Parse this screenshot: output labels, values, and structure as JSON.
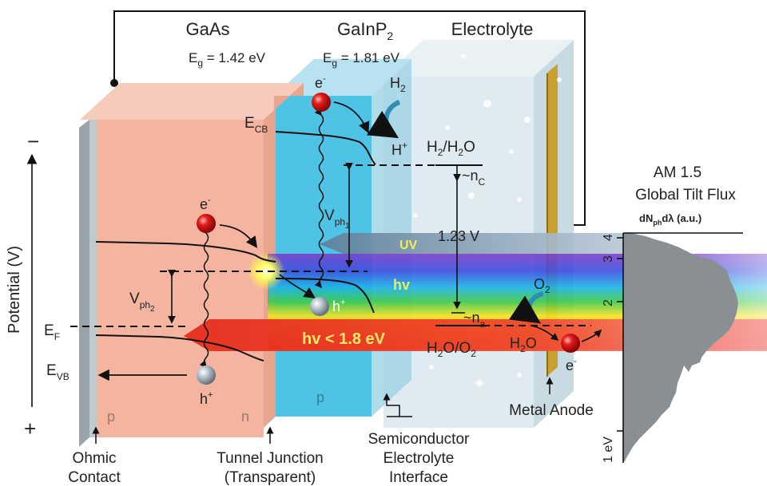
{
  "labels": {
    "gaas": "GaAs",
    "gaas_eg_sym": "E",
    "gaas_eg_sub": "g",
    "gaas_eg_val": " = 1.42 eV",
    "gainp_main": "GaInP",
    "gainp_sub": "2",
    "gainp_eg_sym": "E",
    "gainp_eg_sub": "g",
    "gainp_eg_val": " = 1.81 eV",
    "electrolyte": "Electrolyte",
    "ecb": "E",
    "ecb_sub": "CB",
    "ef": "E",
    "ef_sub": "F",
    "evb": "E",
    "evb_sub": "VB",
    "vph1": "V",
    "vph1_sub": "ph",
    "vph1_sub2": "1",
    "vph2": "V",
    "vph2_sub": "ph",
    "vph2_sub2": "2",
    "h2": "H",
    "h2_sub": "2",
    "hplus": "H",
    "hplus_sup": "+",
    "h2_h2o": "H",
    "h2_h2o_sub": "2",
    "h2_h2o_rest": "/H",
    "h2_h2o_sub2": "2",
    "h2_h2o_end": "O",
    "nc": "~n",
    "nc_sub": "C",
    "v123": "1.23 V",
    "na": "~n",
    "na_sub": "a",
    "h2o_o2": "H",
    "h2o_o2_sub": "2",
    "h2o_o2_mid": "O/O",
    "h2o_o2_sub2": "2",
    "h2o": "H",
    "h2o_sub": "2",
    "h2o_end": "O",
    "o2": "O",
    "o2_sub": "2",
    "uv": "UV",
    "hv": "hv",
    "hv_low": "hv < 1.8 eV",
    "electron": "e",
    "electron_sup": "-",
    "hole": "h",
    "hole_sup": "+",
    "p1": "p",
    "n1": "n",
    "p2": "p",
    "potential": "Potential (V)",
    "minus": "−",
    "plus": "+",
    "am15_line1": "AM 1.5",
    "am15_line2": "Global Tilt Flux",
    "flux_label_a": "dN",
    "flux_label_sub": "ph",
    "flux_label_b": "dλ (a.u.)",
    "metal_anode": "Metal Anode",
    "ohmic_1": "Ohmic",
    "ohmic_2": "Contact",
    "tunnel_1": "Tunnel Junction",
    "tunnel_2": "(Transparent)",
    "sei_1": "Semiconductor",
    "sei_2": "Electrolyte",
    "sei_3": "Interface",
    "tick_4": "4",
    "tick_3": "3",
    "tick_2": "2",
    "tick_1": "1 eV"
  },
  "colors": {
    "gaas": "#f4b49f",
    "gaas_top": "#f7cbbb",
    "gainp": "#4ec3e6",
    "gainp_top": "#b8e2f2",
    "electrolyte": "#dce9ee",
    "anode": "#c9a032",
    "hv_low": "#e0261a",
    "uv": "#6f8fa8"
  }
}
